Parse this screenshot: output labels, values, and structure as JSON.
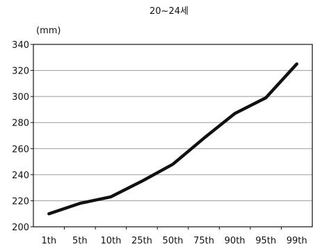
{
  "chart_data": {
    "type": "line",
    "title": "20~24세",
    "ylabel": "(mm)",
    "xlabel": "",
    "categories": [
      "1th",
      "5th",
      "10th",
      "25th",
      "50th",
      "75th",
      "90th",
      "95th",
      "99th"
    ],
    "series": [
      {
        "values": [
          210,
          218,
          223,
          235,
          248,
          268,
          287,
          299,
          325
        ]
      }
    ],
    "ylim": [
      200,
      340
    ],
    "yticks": [
      200,
      220,
      240,
      260,
      280,
      300,
      320,
      340
    ],
    "grid": true,
    "legend": "none",
    "colors": {
      "line": "#111111",
      "grid": "#9a9a9a",
      "axis": "#111111"
    }
  }
}
